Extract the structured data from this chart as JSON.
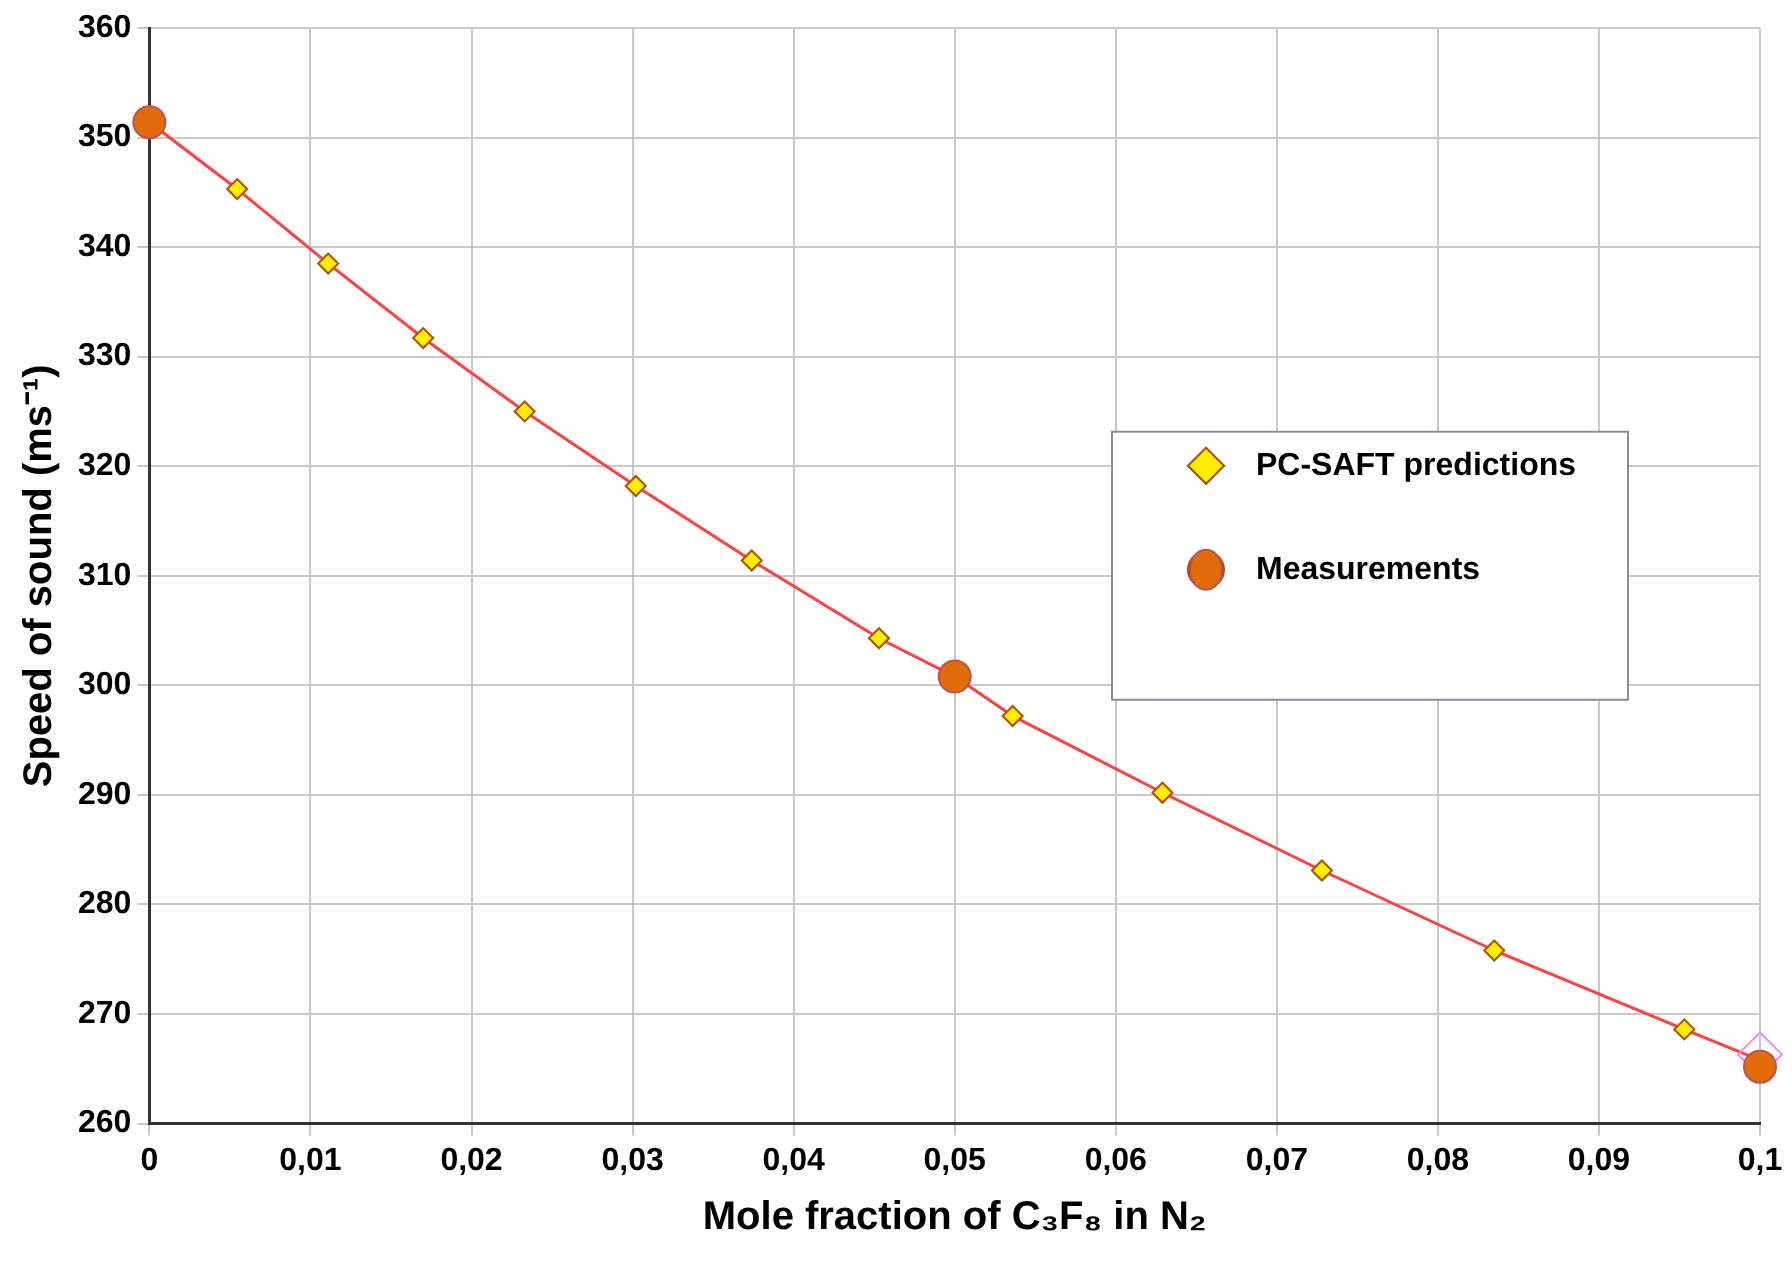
{
  "chart_data": {
    "type": "scatter",
    "xlabel": "Mole fraction of C₃F₈ in N₂",
    "ylabel": "Speed of sound (ms⁻¹)",
    "xlim": [
      0,
      0.1
    ],
    "xticks": [
      0,
      {
        "value": 0.01,
        "label": "0,01"
      },
      {
        "value": 0.02,
        "label": "0,02"
      },
      {
        "value": 0.03,
        "label": "0,03"
      },
      {
        "value": 0.04,
        "label": "0,04"
      },
      {
        "value": 0.05,
        "label": "0,05"
      },
      {
        "value": 0.06,
        "label": "0,06"
      },
      {
        "value": 0.07,
        "label": "0,07"
      },
      {
        "value": 0.08,
        "label": "0,08"
      },
      {
        "value": 0.09,
        "label": "0,09"
      },
      {
        "value": 0.1,
        "label": "0,1"
      }
    ],
    "ylim": [
      260,
      360
    ],
    "yticks": [
      260,
      270,
      280,
      290,
      300,
      310,
      320,
      330,
      340,
      350,
      360
    ],
    "grid": true,
    "legend": "right",
    "series": [
      {
        "type": "line",
        "color": "#ff4040",
        "marker": "none",
        "line_style": "solid",
        "x": [
          0,
          0.00545,
          0.0111,
          0.017,
          0.0233,
          0.0302,
          0.0374,
          0.0453,
          0.05,
          0.0536,
          0.0629,
          0.0728,
          0.0835,
          0.0953,
          0.1
        ],
        "values": [
          351.4,
          345.3,
          338.5,
          331.7,
          325.0,
          318.2,
          311.4,
          304.3,
          300.8,
          297.2,
          290.2,
          283.1,
          275.8,
          268.6,
          265.8
        ]
      },
      {
        "type": "scatter",
        "color": "#ee88ee",
        "marker": "diamond",
        "x": [
          0.1
        ],
        "values": [
          266.3
        ]
      },
      {
        "name": "PC-SAFT predictions",
        "type": "scatter",
        "color": "#ffee00",
        "marker": "diamond",
        "x": [
          0.00545,
          0.0111,
          0.017,
          0.0233,
          0.0302,
          0.0374,
          0.0453,
          0.0536,
          0.0629,
          0.0728,
          0.0835,
          0.0953
        ],
        "values": [
          345.3,
          338.5,
          331.7,
          325.0,
          318.2,
          311.4,
          304.3,
          297.2,
          290.2,
          283.1,
          275.8,
          268.6
        ]
      },
      {
        "name": "Measurements",
        "type": "scatter",
        "color": "#e36c0a",
        "marker": "circle",
        "x": [
          0,
          0.05,
          0.1
        ],
        "values": [
          351.4,
          300.8,
          265.2
        ]
      }
    ]
  }
}
